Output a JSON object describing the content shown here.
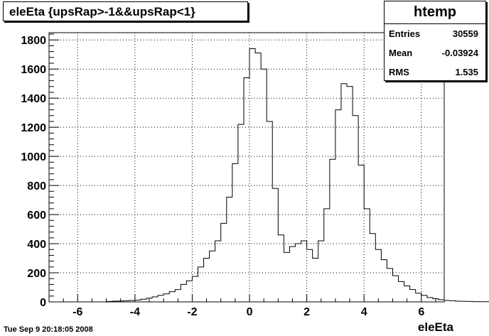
{
  "chart_data": {
    "type": "histogram",
    "title": "eleEta {upsRap>-1&&upsRap<1}",
    "xlabel": "eleEta",
    "ylabel": "",
    "xlim": [
      -7.0,
      6.8
    ],
    "ylim": [
      0,
      1850
    ],
    "grid": true,
    "x_ticks": [
      -6,
      -4,
      -2,
      0,
      2,
      4,
      6
    ],
    "y_ticks": [
      0,
      200,
      400,
      600,
      800,
      1000,
      1200,
      1400,
      1600,
      1800
    ],
    "bin_width": 0.2,
    "bins_start": -5.0,
    "values": [
      3,
      5,
      6,
      8,
      10,
      12,
      18,
      25,
      35,
      45,
      55,
      70,
      85,
      120,
      145,
      175,
      240,
      300,
      350,
      420,
      540,
      720,
      950,
      1220,
      1540,
      1740,
      1710,
      1600,
      1240,
      780,
      460,
      340,
      380,
      400,
      420,
      360,
      300,
      420,
      640,
      980,
      1320,
      1500,
      1480,
      1280,
      940,
      640,
      470,
      360,
      290,
      230,
      180,
      140,
      110,
      85,
      60,
      45,
      30,
      22,
      15,
      10,
      8,
      5,
      4,
      3,
      2,
      1,
      1,
      0,
      0,
      0
    ],
    "stats": {
      "name": "htemp",
      "rows": [
        {
          "label": "Entries",
          "value": "30559"
        },
        {
          "label": "Mean",
          "value": "-0.03924"
        },
        {
          "label": "RMS",
          "value": "1.535"
        }
      ]
    }
  },
  "footer": {
    "date": "Tue Sep  9 20:18:05 2008"
  }
}
